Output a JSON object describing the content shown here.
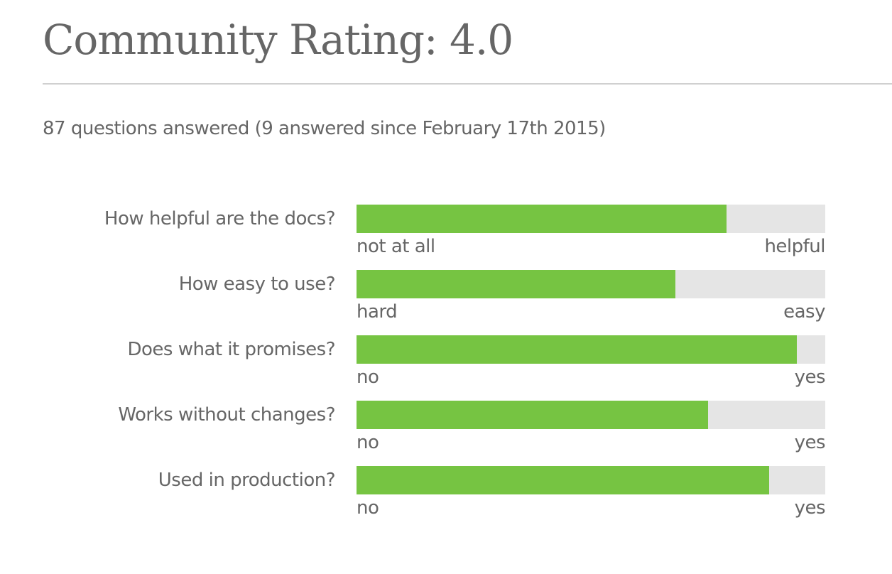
{
  "title": "Community Rating: 4.0",
  "summary": "87 questions answered (9 answered since February 17th 2015)",
  "colors": {
    "fill": "#76c442",
    "track": "#e5e5e5",
    "text": "#666666"
  },
  "chart_data": {
    "type": "bar",
    "orientation": "horizontal",
    "scale": [
      0,
      1
    ],
    "categories": [
      "How helpful are the docs?",
      "How easy to use?",
      "Does what it promises?",
      "Works without changes?",
      "Used in production?"
    ],
    "values": [
      0.79,
      0.68,
      0.94,
      0.75,
      0.88
    ],
    "low_labels": [
      "not at all",
      "hard",
      "no",
      "no",
      "no"
    ],
    "high_labels": [
      "helpful",
      "easy",
      "yes",
      "yes",
      "yes"
    ]
  }
}
